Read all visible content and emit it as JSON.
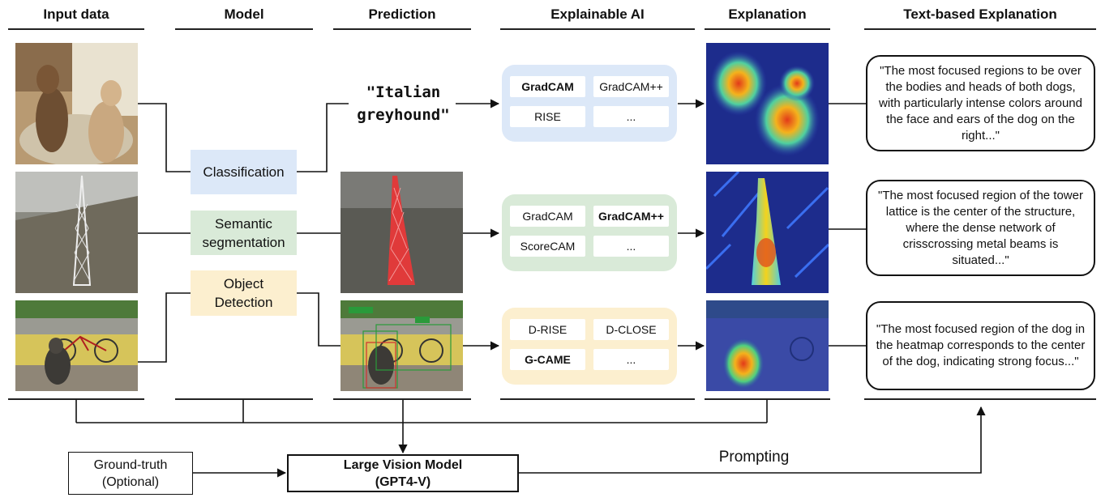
{
  "headers": {
    "input_data": "Input data",
    "model": "Model",
    "prediction": "Prediction",
    "explainable_ai": "Explainable AI",
    "explanation": "Explanation",
    "text_explanation": "Text-based Explanation"
  },
  "models": {
    "classification": "Classification",
    "segmentation_line1": "Semantic",
    "segmentation_line2": "segmentation",
    "detection_line1": "Object",
    "detection_line2": "Detection"
  },
  "prediction": {
    "line1": "\"Italian",
    "line2": "greyhound\""
  },
  "xai": {
    "classification": [
      "GradCAM",
      "GradCAM++",
      "RISE",
      "..."
    ],
    "segmentation": [
      "GradCAM",
      "GradCAM++",
      "ScoreCAM",
      "..."
    ],
    "detection": [
      "D-RISE",
      "D-CLOSE",
      "G-CAME",
      "..."
    ]
  },
  "text_explanations": {
    "classification": "\"The most focused regions to be over the bodies and heads of both dogs, with particularly intense colors around the face and ears of the dog on the right...\"",
    "segmentation": "\"The most focused region of the tower lattice is the center of the structure, where the dense network of crisscrossing metal beams is situated...\"",
    "detection": "\"The most focused region of the dog in the heatmap corresponds to the center of the dog, indicating strong focus...\""
  },
  "bottom": {
    "ground_truth_line1": "Ground-truth",
    "ground_truth_line2": "(Optional)",
    "lvm_line1": "Large Vision Model",
    "lvm_line2": "(GPT4-V)",
    "prompting": "Prompting"
  },
  "colors": {
    "classification": "#dce8f8",
    "segmentation": "#d9ead8",
    "detection": "#fcefcf"
  }
}
